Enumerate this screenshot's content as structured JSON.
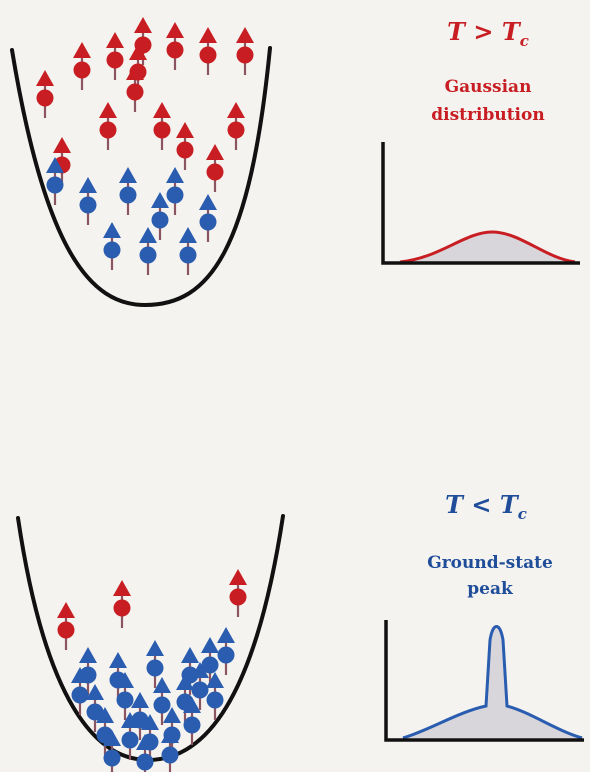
{
  "colors": {
    "hot": "#c81e23",
    "cold": "#2a5db0",
    "stem": "#8a5560",
    "well": "#111111",
    "fill": "#d8d6da",
    "text_hot": "#c81e23",
    "text_cold": "#1f4d9a"
  },
  "panels": [
    {
      "id": "above",
      "temp_parts": {
        "T": "T",
        "op": " > ",
        "T2": "T",
        "sub": "c"
      },
      "desc_lines": [
        "Gaussian",
        "distribution"
      ],
      "distribution": "gaussian",
      "particles": [
        {
          "spin": "hot"
        },
        {
          "spin": "hot"
        },
        {
          "spin": "hot"
        },
        {
          "spin": "hot"
        },
        {
          "spin": "hot"
        },
        {
          "spin": "hot"
        },
        {
          "spin": "hot"
        },
        {
          "spin": "hot"
        },
        {
          "spin": "hot"
        },
        {
          "spin": "hot"
        },
        {
          "spin": "hot"
        },
        {
          "spin": "hot"
        },
        {
          "spin": "hot"
        },
        {
          "spin": "hot"
        },
        {
          "spin": "hot"
        },
        {
          "spin": "cold"
        },
        {
          "spin": "cold"
        },
        {
          "spin": "cold"
        },
        {
          "spin": "cold"
        },
        {
          "spin": "cold"
        },
        {
          "spin": "cold"
        },
        {
          "spin": "cold"
        },
        {
          "spin": "cold"
        },
        {
          "spin": "cold"
        }
      ]
    },
    {
      "id": "below",
      "temp_parts": {
        "T": "T",
        "op": " < ",
        "T2": "T",
        "sub": "c"
      },
      "desc_lines": [
        "Ground-state",
        "peak"
      ],
      "distribution": "peaked",
      "particles": [
        {
          "spin": "hot"
        },
        {
          "spin": "hot"
        },
        {
          "spin": "hot"
        },
        {
          "spin": "cold"
        },
        {
          "spin": "cold"
        },
        {
          "spin": "cold"
        },
        {
          "spin": "cold"
        },
        {
          "spin": "cold"
        },
        {
          "spin": "cold"
        },
        {
          "spin": "cold"
        },
        {
          "spin": "cold"
        },
        {
          "spin": "cold"
        },
        {
          "spin": "cold"
        },
        {
          "spin": "cold"
        },
        {
          "spin": "cold"
        },
        {
          "spin": "cold"
        },
        {
          "spin": "cold"
        },
        {
          "spin": "cold"
        },
        {
          "spin": "cold"
        },
        {
          "spin": "cold"
        },
        {
          "spin": "cold"
        },
        {
          "spin": "cold"
        },
        {
          "spin": "cold"
        },
        {
          "spin": "cold"
        },
        {
          "spin": "cold"
        }
      ]
    }
  ]
}
